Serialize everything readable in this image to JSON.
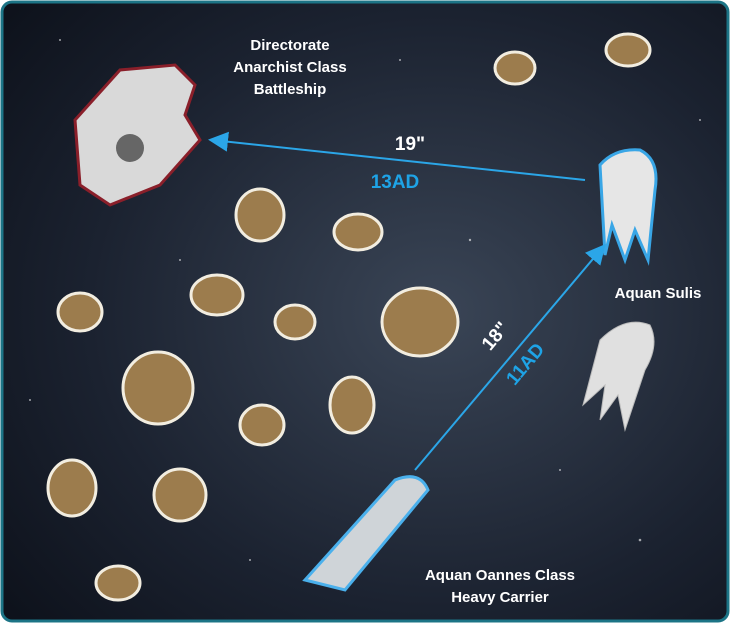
{
  "ships": [
    {
      "label_lines": [
        "Directorate",
        "Anarchist Class",
        "Battleship"
      ]
    },
    {
      "label_lines": [
        "Aquan Sulis"
      ]
    },
    {
      "label_lines": [
        "Aquan Oannes Class",
        "Heavy Carrier"
      ]
    }
  ],
  "measurements": [
    {
      "distance": "19\"",
      "ad": "13AD"
    },
    {
      "distance": "18\"",
      "ad": "11AD"
    }
  ]
}
